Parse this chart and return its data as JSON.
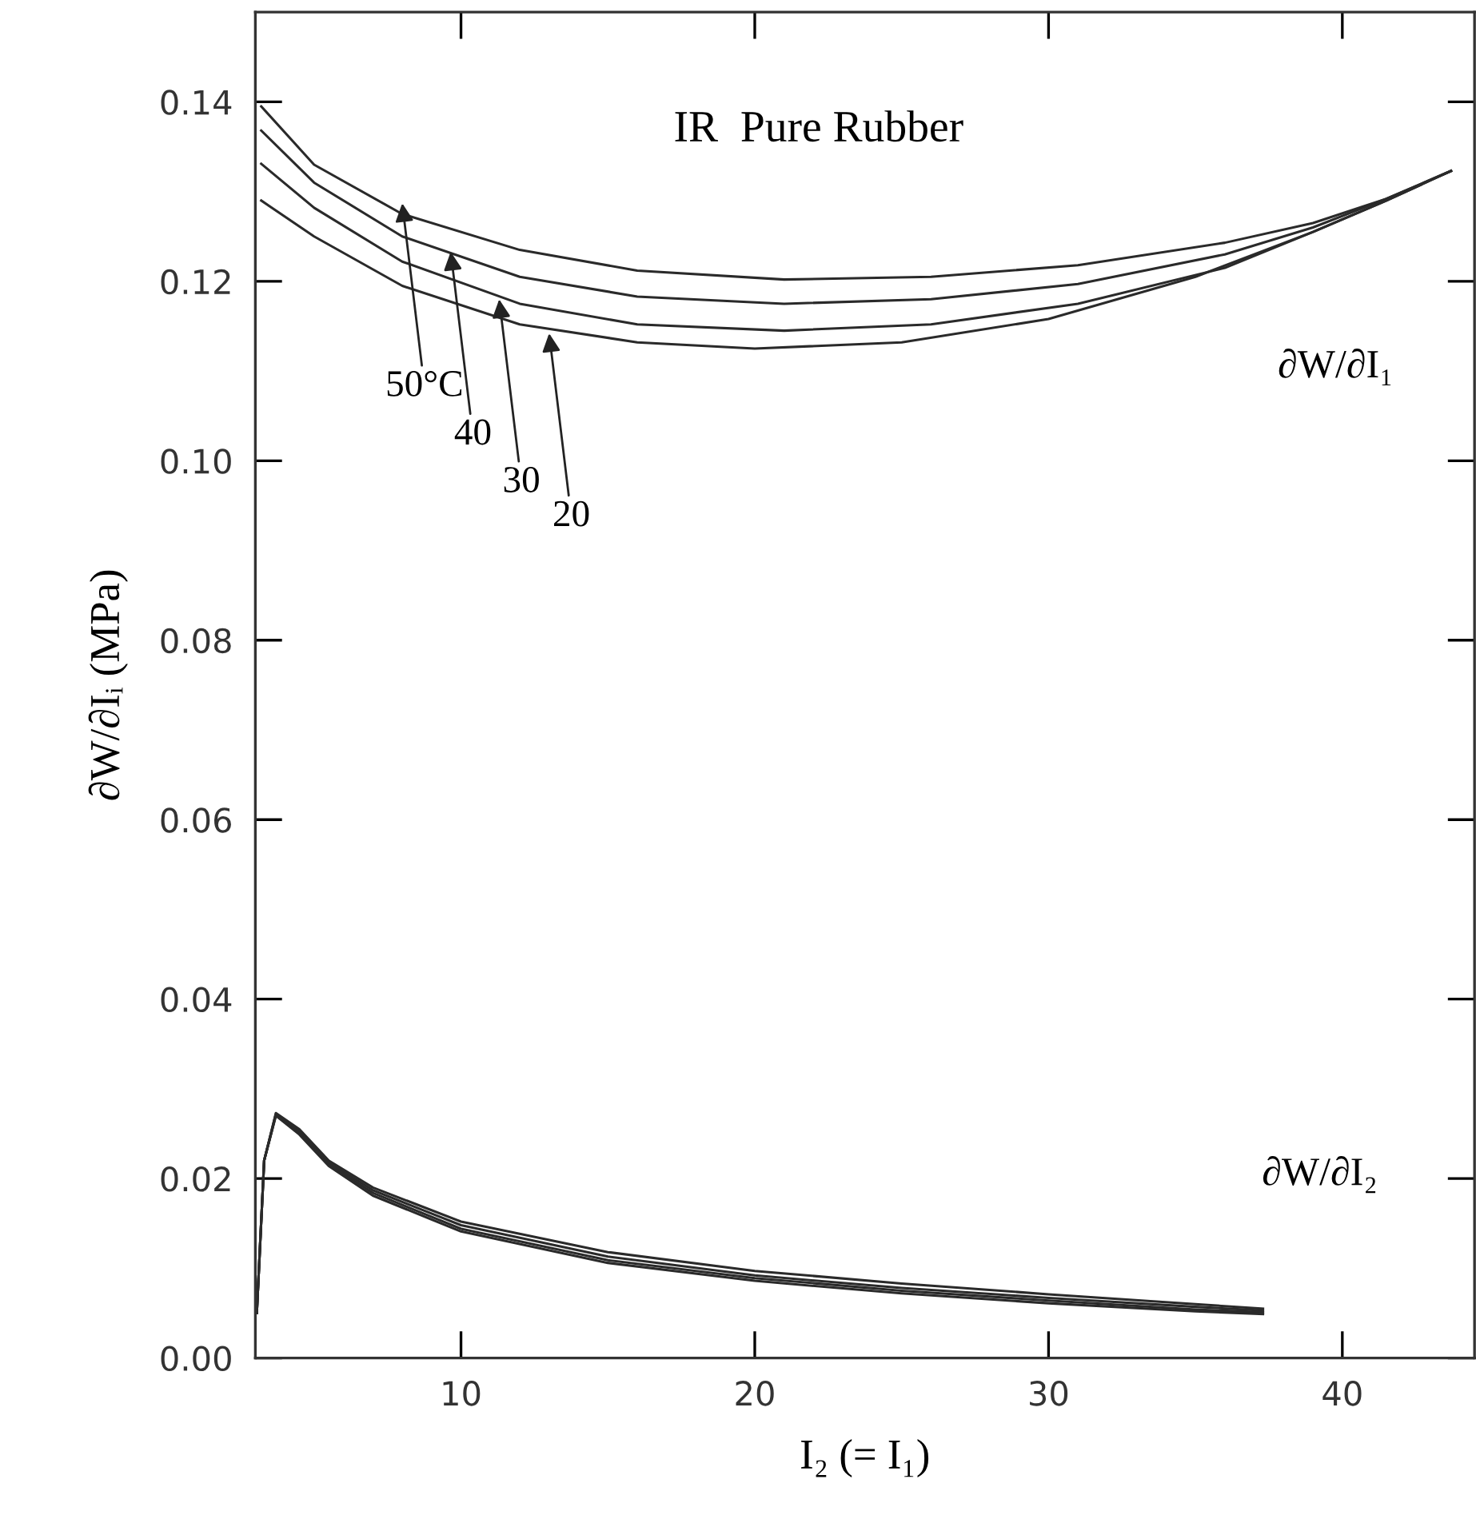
{
  "chart_data": {
    "type": "line",
    "title": "IR  Pure Rubber",
    "xlabel": "I₂ (= I₁)",
    "ylabel": "∂W/∂Iᵢ (MPa)",
    "xlim": [
      3,
      44.5
    ],
    "xticks": [
      10,
      20,
      30,
      40
    ],
    "ylim": [
      0,
      0.15
    ],
    "yticks": [
      {
        "value": 0,
        "label": "0.00"
      },
      {
        "value": 0.02,
        "label": "0.02"
      },
      {
        "value": 0.04,
        "label": "0.04"
      },
      {
        "value": 0.06,
        "label": "0.06"
      },
      {
        "value": 0.08,
        "label": "0.08"
      },
      {
        "value": 0.1,
        "label": "0.10"
      },
      {
        "value": 0.12,
        "label": "0.12"
      },
      {
        "value": 0.14,
        "label": "0.14"
      }
    ],
    "marker": "none",
    "line_style": "solid",
    "series": [
      {
        "color": "#2a2a2a",
        "x": [
          3.2,
          5,
          8,
          12,
          16,
          21,
          26,
          31,
          36,
          39,
          41.5,
          43.7
        ],
        "values": [
          0.1395,
          0.133,
          0.1275,
          0.1235,
          0.1212,
          0.1202,
          0.1205,
          0.1218,
          0.1243,
          0.1265,
          0.1292,
          0.1323
        ]
      },
      {
        "color": "#2a2a2a",
        "x": [
          3.2,
          5,
          8,
          12,
          16,
          21,
          26,
          31,
          36,
          39,
          41.5,
          43.7
        ],
        "values": [
          0.1368,
          0.131,
          0.125,
          0.1205,
          0.1183,
          0.1175,
          0.118,
          0.1197,
          0.123,
          0.126,
          0.1292,
          0.1323
        ]
      },
      {
        "color": "#2a2a2a",
        "x": [
          3.2,
          5,
          8,
          12,
          16,
          21,
          26,
          31,
          36,
          39,
          41.5,
          43.7
        ],
        "values": [
          0.1331,
          0.1282,
          0.1222,
          0.1175,
          0.1152,
          0.1145,
          0.1152,
          0.1175,
          0.1215,
          0.1255,
          0.129,
          0.1323
        ]
      },
      {
        "color": "#2a2a2a",
        "x": [
          3.2,
          5,
          8,
          12,
          16,
          20,
          25,
          30,
          35,
          39,
          41.5,
          43.7
        ],
        "values": [
          0.129,
          0.125,
          0.1195,
          0.1152,
          0.1132,
          0.1125,
          0.1132,
          0.1158,
          0.1205,
          0.1255,
          0.129,
          0.1323
        ]
      },
      {
        "color": "#2a2a2a",
        "x": [
          3.05,
          3.3,
          3.7,
          4.5,
          5.5,
          7,
          10,
          15,
          20,
          25,
          30,
          35,
          37.3
        ],
        "values": [
          0.005,
          0.022,
          0.0273,
          0.0255,
          0.022,
          0.019,
          0.0152,
          0.0118,
          0.0097,
          0.0083,
          0.0071,
          0.006,
          0.0055
        ]
      },
      {
        "color": "#2a2a2a",
        "x": [
          3.05,
          3.3,
          3.7,
          4.5,
          5.5,
          7,
          10,
          15,
          20,
          25,
          30,
          35,
          37.3
        ],
        "values": [
          0.005,
          0.022,
          0.0272,
          0.0253,
          0.0218,
          0.0187,
          0.0148,
          0.0113,
          0.0092,
          0.0078,
          0.0067,
          0.0057,
          0.0053
        ]
      },
      {
        "color": "#2a2a2a",
        "x": [
          3.05,
          3.3,
          3.7,
          4.5,
          5.5,
          7,
          10,
          15,
          20,
          25,
          30,
          35,
          37.3
        ],
        "values": [
          0.005,
          0.022,
          0.0271,
          0.0251,
          0.0216,
          0.0184,
          0.0144,
          0.0109,
          0.0089,
          0.0075,
          0.0064,
          0.0054,
          0.0051
        ]
      },
      {
        "color": "#2a2a2a",
        "x": [
          3.05,
          3.3,
          3.7,
          4.5,
          5.5,
          7,
          10,
          15,
          20,
          25,
          30,
          35,
          37.3
        ],
        "values": [
          0.005,
          0.022,
          0.027,
          0.0249,
          0.0214,
          0.0181,
          0.0141,
          0.0106,
          0.0086,
          0.0072,
          0.0061,
          0.0052,
          0.0049
        ]
      }
    ],
    "annotations": [
      "∂W/∂I₁",
      "∂W/∂I₂",
      {
        "text": "50°C",
        "x": 8.0,
        "y": 0.1287
      },
      {
        "text": "40",
        "x": 9.65,
        "y": 0.1233
      },
      {
        "text": "30",
        "x": 11.3,
        "y": 0.118
      },
      {
        "text": "20",
        "x": 13.0,
        "y": 0.1142
      }
    ]
  }
}
